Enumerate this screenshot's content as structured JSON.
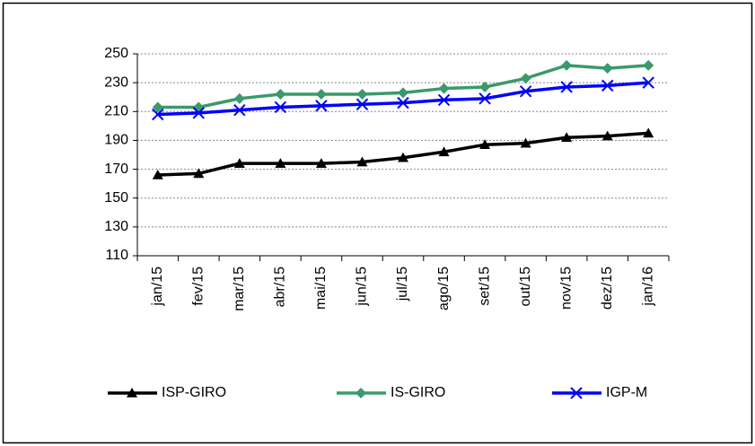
{
  "chart_data": {
    "type": "line",
    "categories": [
      "jan/15",
      "fev/15",
      "mar/15",
      "abr/15",
      "mai/15",
      "jun/15",
      "jul/15",
      "ago/15",
      "set/15",
      "out/15",
      "nov/15",
      "dez/15",
      "jan/16"
    ],
    "series": [
      {
        "name": "ISP-GIRO",
        "color": "#000000",
        "marker": "triangle",
        "values": [
          166,
          167,
          174,
          174,
          174,
          175,
          178,
          182,
          187,
          188,
          192,
          193,
          195
        ]
      },
      {
        "name": "IS-GIRO",
        "color": "#3a9a6a",
        "marker": "diamond",
        "values": [
          213,
          213,
          219,
          222,
          222,
          222,
          223,
          226,
          227,
          233,
          242,
          240,
          242
        ]
      },
      {
        "name": "IGP-M",
        "color": "#0000ff",
        "marker": "x",
        "values": [
          208,
          209,
          211,
          213,
          214,
          215,
          216,
          218,
          219,
          224,
          227,
          228,
          230
        ]
      }
    ],
    "ylim": [
      110,
      250
    ],
    "yticks": [
      110,
      130,
      150,
      170,
      190,
      210,
      230,
      250
    ],
    "grid": true,
    "legend": "bottom"
  }
}
